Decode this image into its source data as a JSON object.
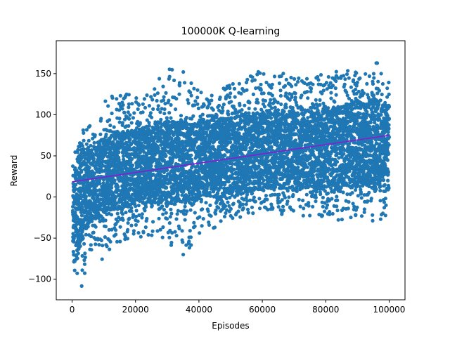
{
  "chart_data": {
    "type": "scatter",
    "title": "100000K Q-learning",
    "xlabel": "Episodes",
    "ylabel": "Reward",
    "xlim": [
      -5000,
      105000
    ],
    "ylim": [
      -125,
      190
    ],
    "xticks": [
      0,
      20000,
      40000,
      60000,
      80000,
      100000
    ],
    "xtick_labels": [
      "0",
      "20000",
      "40000",
      "60000",
      "80000",
      "100000"
    ],
    "yticks": [
      -100,
      -50,
      0,
      50,
      100,
      150
    ],
    "ytick_labels": [
      "−100",
      "−50",
      "0",
      "50",
      "100",
      "150"
    ],
    "grid": false,
    "series": [
      {
        "kind": "scatter",
        "color": "#1f77b4",
        "x": [
          0,
          1000,
          2000,
          3000,
          5000,
          7500,
          10000,
          15000,
          20000,
          25000,
          30000,
          35000,
          40000,
          45000,
          50000,
          55000,
          60000,
          65000,
          70000,
          75000,
          80000,
          85000,
          90000,
          95000,
          100000
        ],
        "upper": [
          45,
          55,
          68,
          85,
          88,
          98,
          118,
          128,
          122,
          128,
          160,
          155,
          128,
          125,
          138,
          145,
          155,
          152,
          148,
          152,
          150,
          158,
          152,
          172,
          155
        ],
        "lower": [
          -118,
          -112,
          -108,
          -112,
          -78,
          -62,
          -80,
          -55,
          -50,
          -52,
          -62,
          -75,
          -45,
          -38,
          -28,
          -22,
          -20,
          -22,
          -25,
          -28,
          -25,
          -30,
          -22,
          -32,
          -22
        ],
        "core_upper": [
          22,
          32,
          42,
          52,
          58,
          62,
          72,
          78,
          82,
          85,
          92,
          90,
          92,
          92,
          98,
          100,
          102,
          104,
          104,
          106,
          106,
          110,
          112,
          118,
          112
        ],
        "core_lower": [
          -90,
          -75,
          -65,
          -55,
          -35,
          -22,
          -18,
          -12,
          -8,
          -5,
          -8,
          -5,
          0,
          2,
          5,
          8,
          10,
          10,
          12,
          12,
          14,
          12,
          15,
          14,
          18
        ]
      },
      {
        "kind": "line",
        "color": "#8a1ccf",
        "x": [
          0,
          100000
        ],
        "y": [
          18.5,
          75
        ]
      }
    ]
  }
}
